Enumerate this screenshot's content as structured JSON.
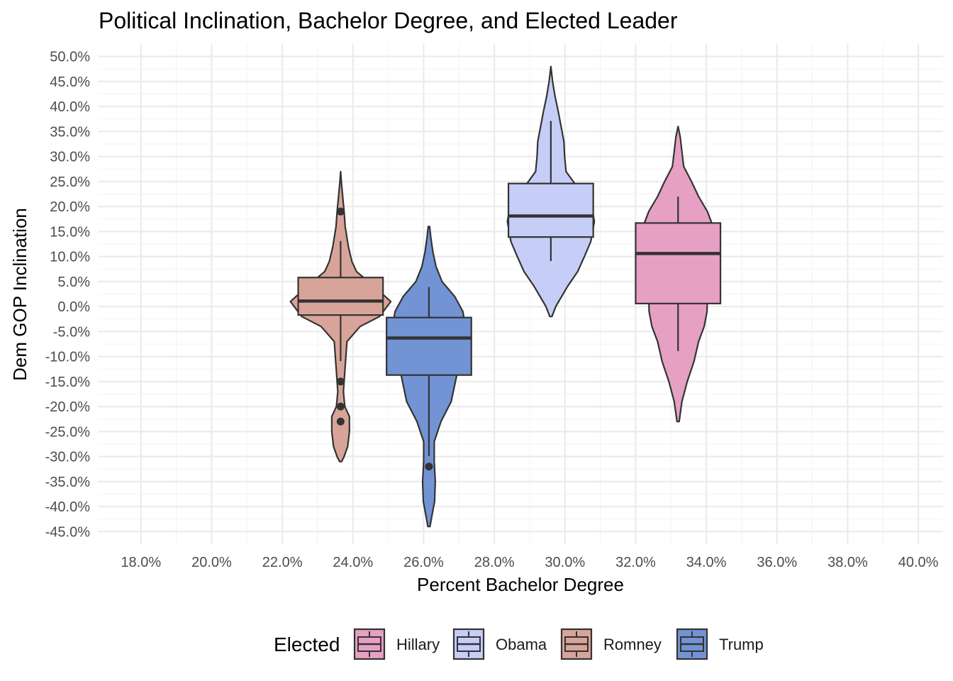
{
  "chart_data": {
    "type": "violin",
    "title": "Political Inclination, Bachelor Degree, and Elected Leader",
    "xlabel": "Percent Bachelor Degree",
    "ylabel": "Dem GOP Inclination",
    "xlim": [
      0.168,
      0.407
    ],
    "ylim": [
      -0.475,
      0.525
    ],
    "x_ticks": [
      0.18,
      0.2,
      0.22,
      0.24,
      0.26,
      0.28,
      0.3,
      0.32,
      0.34,
      0.36,
      0.38,
      0.4
    ],
    "x_tick_labels": [
      "18.0%",
      "20.0%",
      "22.0%",
      "24.0%",
      "26.0%",
      "28.0%",
      "30.0%",
      "32.0%",
      "34.0%",
      "36.0%",
      "38.0%",
      "40.0%"
    ],
    "y_ticks": [
      0.5,
      0.45,
      0.4,
      0.35,
      0.3,
      0.25,
      0.2,
      0.15,
      0.1,
      0.05,
      0.0,
      -0.05,
      -0.1,
      -0.15,
      -0.2,
      -0.25,
      -0.3,
      -0.35,
      -0.4,
      -0.45
    ],
    "y_tick_labels": [
      "50.0%",
      "45.0%",
      "40.0%",
      "35.0%",
      "30.0%",
      "25.0%",
      "20.0%",
      "15.0%",
      "10.0%",
      "5.0%",
      "0.0%",
      "-5.0%",
      "-10.0%",
      "-15.0%",
      "-20.0%",
      "-25.0%",
      "-30.0%",
      "-35.0%",
      "-40.0%",
      "-45.0%"
    ],
    "grid": true,
    "legend": {
      "title": "Elected",
      "position": "bottom",
      "items": [
        {
          "name": "Hillary",
          "color": "#e6a0c4"
        },
        {
          "name": "Obama",
          "color": "#c6cdf7"
        },
        {
          "name": "Romney",
          "color": "#d8a499"
        },
        {
          "name": "Trump",
          "color": "#7294d4"
        }
      ]
    },
    "series": [
      {
        "name": "Romney",
        "color": "#d8a499",
        "center_x": 0.2365,
        "box": {
          "q1": -0.017,
          "median": 0.011,
          "q3": 0.058,
          "whisker_low": -0.109,
          "whisker_high": 0.131
        },
        "outliers": [
          0.19,
          -0.15,
          -0.2,
          -0.23
        ],
        "violin": [
          [
            -0.31,
            0.0003
          ],
          [
            -0.3,
            0.001
          ],
          [
            -0.28,
            0.002
          ],
          [
            -0.25,
            0.0025
          ],
          [
            -0.22,
            0.0025
          ],
          [
            -0.2,
            0.0012
          ],
          [
            -0.17,
            0.0008
          ],
          [
            -0.12,
            0.0013
          ],
          [
            -0.07,
            0.0018
          ],
          [
            -0.04,
            0.0055
          ],
          [
            -0.02,
            0.011
          ],
          [
            0.01,
            0.0142
          ],
          [
            0.04,
            0.0095
          ],
          [
            0.07,
            0.0045
          ],
          [
            0.09,
            0.0032
          ],
          [
            0.12,
            0.0022
          ],
          [
            0.16,
            0.0013
          ],
          [
            0.19,
            0.001
          ],
          [
            0.22,
            0.0006
          ],
          [
            0.25,
            0.0002
          ],
          [
            0.27,
            0.0
          ]
        ]
      },
      {
        "name": "Trump",
        "color": "#7294d4",
        "center_x": 0.2615,
        "box": {
          "q1": -0.137,
          "median": -0.063,
          "q3": -0.022,
          "whisker_low": -0.299,
          "whisker_high": 0.039
        },
        "outliers": [
          -0.32
        ],
        "violin": [
          [
            -0.44,
            0.0003
          ],
          [
            -0.42,
            0.0008
          ],
          [
            -0.39,
            0.0016
          ],
          [
            -0.35,
            0.0018
          ],
          [
            -0.31,
            0.0015
          ],
          [
            -0.27,
            0.0015
          ],
          [
            -0.23,
            0.0034
          ],
          [
            -0.19,
            0.0063
          ],
          [
            -0.14,
            0.0078
          ],
          [
            -0.09,
            0.0088
          ],
          [
            -0.04,
            0.0103
          ],
          [
            -0.01,
            0.0096
          ],
          [
            0.02,
            0.0073
          ],
          [
            0.05,
            0.0037
          ],
          [
            0.08,
            0.002
          ],
          [
            0.11,
            0.0011
          ],
          [
            0.14,
            0.0005
          ],
          [
            0.16,
            0.0002
          ]
        ]
      },
      {
        "name": "Obama",
        "color": "#c6cdf7",
        "center_x": 0.296,
        "box": {
          "q1": 0.139,
          "median": 0.181,
          "q3": 0.246,
          "whisker_low": 0.091,
          "whisker_high": 0.371
        },
        "outliers": [],
        "violin": [
          [
            -0.02,
            0.0003
          ],
          [
            0.0,
            0.0014
          ],
          [
            0.04,
            0.0047
          ],
          [
            0.07,
            0.0076
          ],
          [
            0.1,
            0.0095
          ],
          [
            0.13,
            0.0113
          ],
          [
            0.17,
            0.0123
          ],
          [
            0.2,
            0.0116
          ],
          [
            0.23,
            0.0084
          ],
          [
            0.27,
            0.0043
          ],
          [
            0.3,
            0.0039
          ],
          [
            0.33,
            0.0037
          ],
          [
            0.36,
            0.0029
          ],
          [
            0.39,
            0.0021
          ],
          [
            0.42,
            0.0012
          ],
          [
            0.45,
            0.0005
          ],
          [
            0.48,
            0.0
          ]
        ]
      },
      {
        "name": "Hillary",
        "color": "#e6a0c4",
        "center_x": 0.332,
        "box": {
          "q1": 0.006,
          "median": 0.106,
          "q3": 0.167,
          "whisker_low": -0.089,
          "whisker_high": 0.22
        },
        "outliers": [],
        "violin": [
          [
            -0.23,
            0.0003
          ],
          [
            -0.19,
            0.0011
          ],
          [
            -0.15,
            0.0026
          ],
          [
            -0.11,
            0.0045
          ],
          [
            -0.07,
            0.0058
          ],
          [
            -0.04,
            0.0074
          ],
          [
            -0.01,
            0.0082
          ],
          [
            0.02,
            0.0083
          ],
          [
            0.06,
            0.0088
          ],
          [
            0.1,
            0.0096
          ],
          [
            0.13,
            0.0102
          ],
          [
            0.16,
            0.0099
          ],
          [
            0.19,
            0.0083
          ],
          [
            0.22,
            0.0058
          ],
          [
            0.25,
            0.0038
          ],
          [
            0.28,
            0.0016
          ],
          [
            0.31,
            0.0011
          ],
          [
            0.34,
            0.0006
          ],
          [
            0.36,
            0.0
          ]
        ]
      }
    ]
  }
}
